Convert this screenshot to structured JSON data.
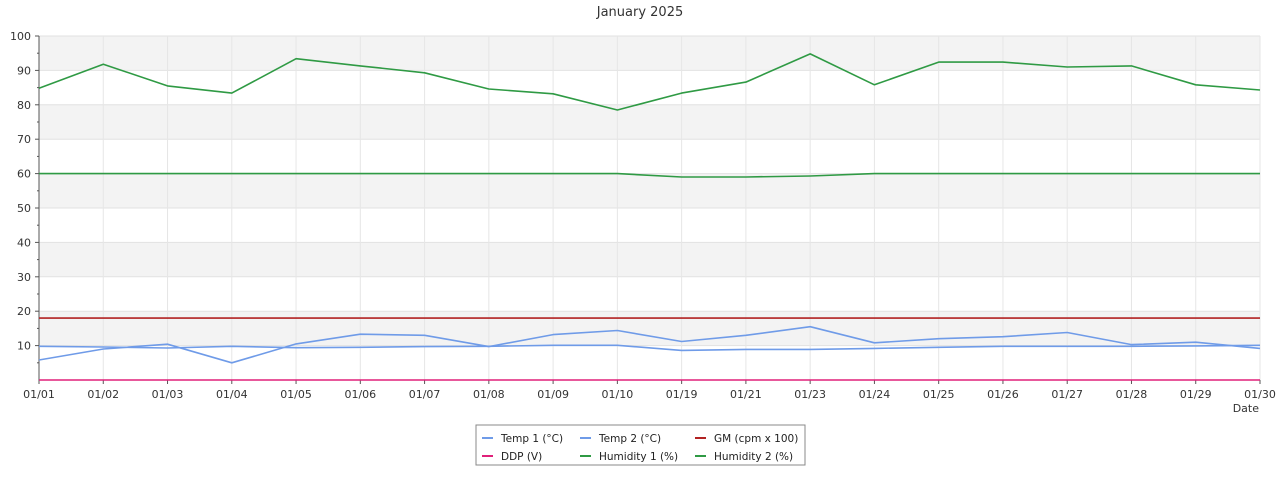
{
  "chart_data": {
    "type": "line",
    "title": "January 2025",
    "xlabel": "Date",
    "ylabel": "",
    "ylim": [
      0,
      100
    ],
    "yticks": [
      10,
      20,
      30,
      40,
      50,
      60,
      70,
      80,
      90,
      100
    ],
    "categories": [
      "01/01",
      "01/02",
      "01/03",
      "01/04",
      "01/05",
      "01/06",
      "01/07",
      "01/08",
      "01/09",
      "01/10",
      "01/19",
      "01/21",
      "01/23",
      "01/24",
      "01/25",
      "01/26",
      "01/27",
      "01/28",
      "01/29",
      "01/30"
    ],
    "grid": true,
    "legend_position": "bottom-center",
    "series": [
      {
        "name": "Temp 1 (°C)",
        "color": "#6f9be8",
        "values": [
          9.8,
          9.6,
          9.3,
          9.8,
          9.4,
          9.5,
          9.7,
          9.8,
          10.1,
          10.1,
          8.6,
          8.9,
          8.9,
          9.2,
          9.5,
          9.8,
          9.8,
          9.8,
          9.9,
          10.1
        ]
      },
      {
        "name": "Temp 2 (°C)",
        "color": "#6f9be8",
        "values": [
          5.8,
          9.0,
          10.4,
          5.0,
          10.5,
          13.3,
          13.0,
          9.7,
          13.2,
          14.4,
          11.2,
          13.0,
          15.5,
          10.8,
          12.0,
          12.6,
          13.8,
          10.3,
          11.0,
          9.2
        ]
      },
      {
        "name": "GM (cpm x 100)",
        "color": "#b22222",
        "values": [
          18,
          18,
          18,
          18,
          18,
          18,
          18,
          18,
          18,
          18,
          18,
          18,
          18,
          18,
          18,
          18,
          18,
          18,
          18,
          18
        ]
      },
      {
        "name": "DDP (V)",
        "color": "#e0207a",
        "values": [
          0,
          0,
          0,
          0,
          0,
          0,
          0,
          0,
          0,
          0,
          0,
          0,
          0,
          0,
          0,
          0,
          0,
          0,
          0,
          0
        ]
      },
      {
        "name": "Humidity 1 (%)",
        "color": "#2f9a44",
        "values": [
          84.8,
          91.8,
          85.5,
          83.4,
          93.4,
          91.3,
          89.3,
          84.6,
          83.2,
          78.5,
          83.4,
          86.6,
          94.8,
          85.8,
          92.4,
          92.4,
          91.0,
          91.3,
          85.8,
          84.3
        ]
      },
      {
        "name": "Humidity 2 (%)",
        "color": "#2f9a44",
        "values": [
          60,
          60,
          60,
          60,
          60,
          60,
          60,
          60,
          60,
          60,
          59,
          59,
          59.3,
          60,
          60,
          60,
          60,
          60,
          60,
          60
        ]
      }
    ]
  }
}
